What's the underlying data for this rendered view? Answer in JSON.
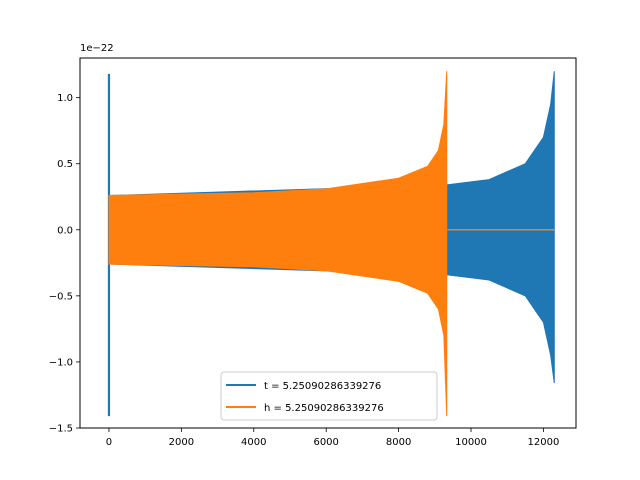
{
  "chart_data": {
    "type": "line",
    "title": "",
    "xlabel": "",
    "ylabel": "",
    "y_offset_label": "1e−22",
    "xlim": [
      -800,
      12900
    ],
    "ylim": [
      -1.5,
      1.3
    ],
    "xticks": [
      0,
      2000,
      4000,
      6000,
      8000,
      10000,
      12000
    ],
    "xtick_labels": [
      "0",
      "2000",
      "4000",
      "6000",
      "8000",
      "10000",
      "12000"
    ],
    "yticks": [
      -1.5,
      -1.0,
      -0.5,
      0.0,
      0.5,
      1.0
    ],
    "ytick_labels": [
      "−1.5",
      "−1.0",
      "−0.5",
      "0.0",
      "0.5",
      "1.0"
    ],
    "grid": false,
    "legend_placement": "lower center",
    "series": [
      {
        "name": "t = 5.25090286339276",
        "color": "#1f77b4",
        "x_start": 0,
        "x_end": 12300,
        "initial_spike": {
          "x": 0,
          "ymax": 1.18,
          "ymin": -1.41
        },
        "envelope": [
          {
            "x": 100,
            "amp": 0.26
          },
          {
            "x": 9330,
            "amp": 0.34
          },
          {
            "x": 10500,
            "amp": 0.38
          },
          {
            "x": 11500,
            "amp": 0.5
          },
          {
            "x": 12000,
            "amp": 0.7
          },
          {
            "x": 12200,
            "amp": 0.95
          },
          {
            "x": 12300,
            "ymax": 1.2,
            "ymin": -1.16
          }
        ]
      },
      {
        "name": "h = 5.25090286339276",
        "color": "#ff7f0e",
        "x_start": 0,
        "x_end": 12300,
        "envelope": [
          {
            "x": 0,
            "amp": 0.26
          },
          {
            "x": 4000,
            "amp": 0.28
          },
          {
            "x": 6000,
            "amp": 0.31
          },
          {
            "x": 8000,
            "amp": 0.39
          },
          {
            "x": 8800,
            "amp": 0.48
          },
          {
            "x": 9100,
            "amp": 0.6
          },
          {
            "x": 9250,
            "amp": 0.8
          },
          {
            "x": 9330,
            "ymax": 1.2,
            "ymin": -1.41
          }
        ],
        "tail_value": 0.0,
        "tail_x": [
          9350,
          12300
        ]
      }
    ]
  }
}
